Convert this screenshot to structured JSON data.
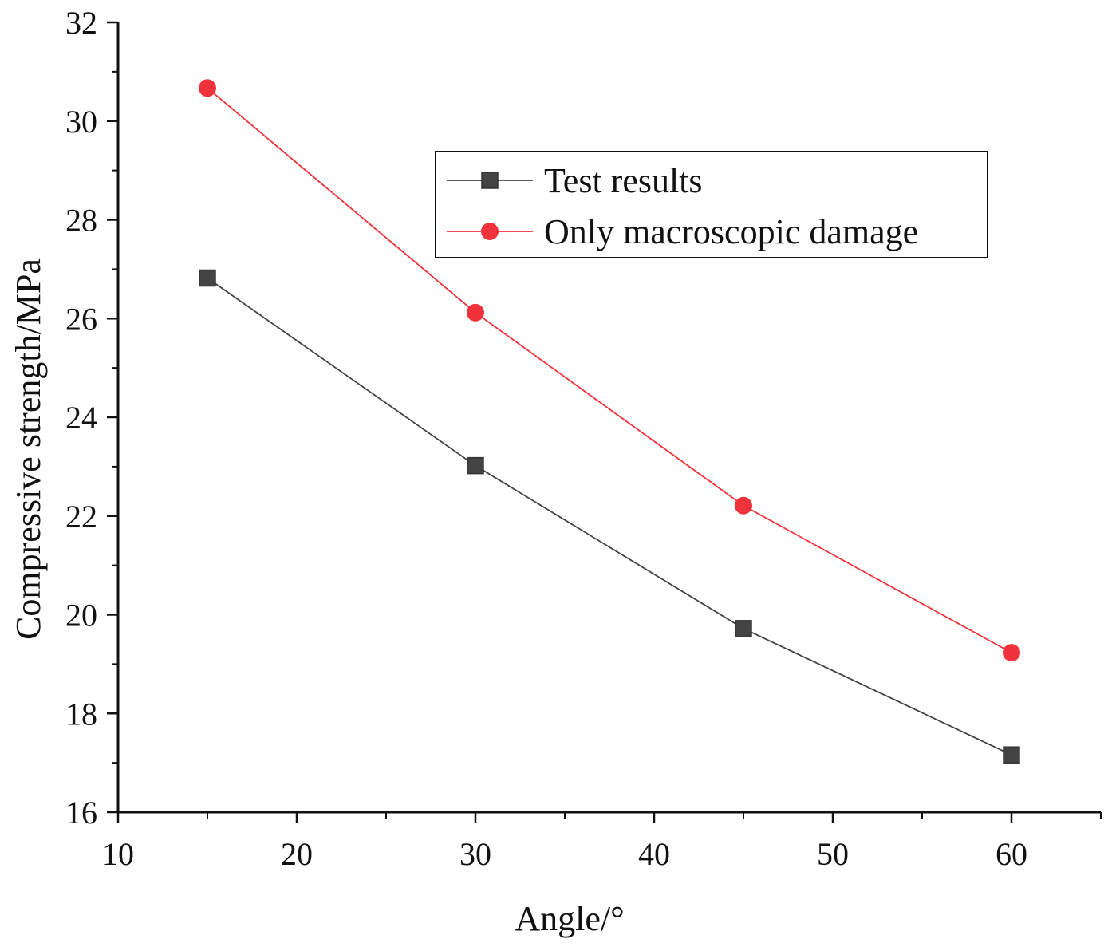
{
  "chart_data": {
    "type": "line",
    "title": "",
    "xlabel": "Angle/°",
    "ylabel": "Compressive strength/MPa",
    "xlim": [
      10,
      65
    ],
    "ylim": [
      16,
      32
    ],
    "xticks": [
      10,
      20,
      30,
      40,
      50,
      60
    ],
    "yticks": [
      16,
      18,
      20,
      22,
      24,
      26,
      28,
      30,
      32
    ],
    "x": [
      15,
      30,
      45,
      60
    ],
    "grid": false,
    "legend_position": "top-right",
    "series": [
      {
        "name": "Test results",
        "marker": "square",
        "color": "#444444",
        "values": [
          26.82,
          23.02,
          19.72,
          17.16
        ]
      },
      {
        "name": "Only macroscopic damage",
        "marker": "circle",
        "color": "#f0323c",
        "values": [
          30.67,
          26.12,
          22.21,
          19.23
        ]
      }
    ]
  }
}
